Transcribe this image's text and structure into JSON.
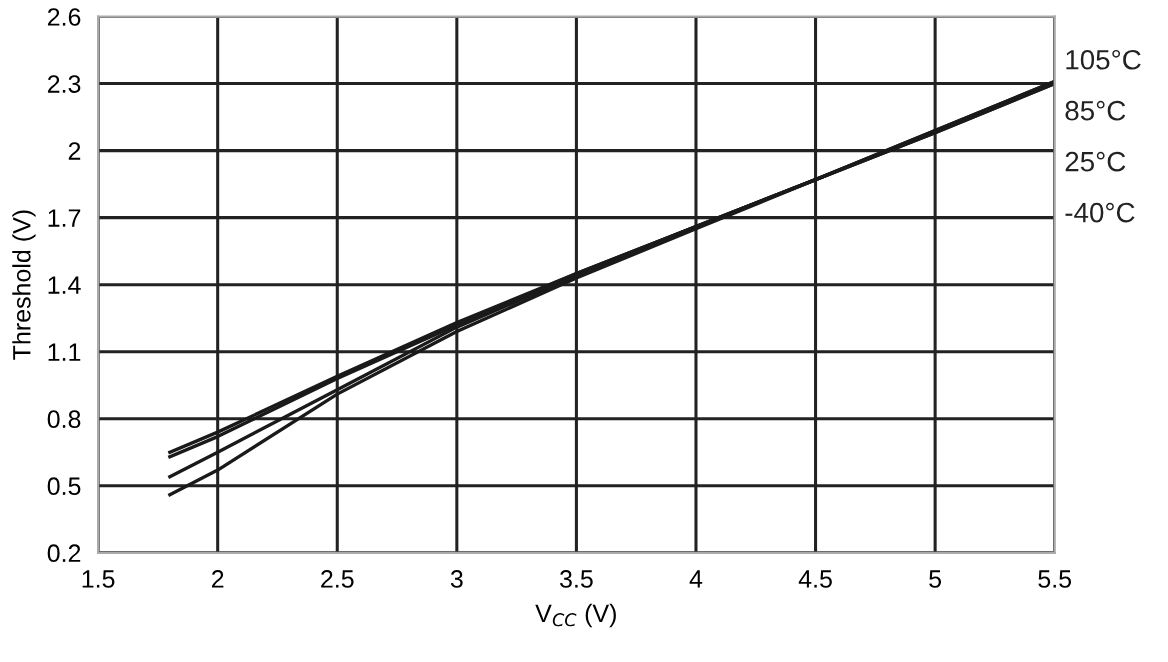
{
  "chart_data": {
    "type": "line",
    "xlabel": "V$_{CC}$ (V)",
    "ylabel": "Threshold (V)",
    "x": [
      1.8,
      2,
      2.5,
      3,
      3.5,
      4,
      4.5,
      5,
      5.5
    ],
    "series": [
      {
        "name": "105°C",
        "color": "#1a1a1a",
        "values": [
          0.65,
          0.74,
          0.99,
          1.23,
          1.45,
          1.66,
          1.87,
          2.09,
          2.31
        ]
      },
      {
        "name": "85°C",
        "color": "#1a1a1a",
        "values": [
          0.63,
          0.72,
          0.98,
          1.22,
          1.45,
          1.66,
          1.87,
          2.09,
          2.31
        ]
      },
      {
        "name": "25°C",
        "color": "#1a1a1a",
        "values": [
          0.54,
          0.65,
          0.93,
          1.21,
          1.44,
          1.66,
          1.87,
          2.08,
          2.3
        ]
      },
      {
        "name": "-40°C",
        "color": "#1a1a1a",
        "values": [
          0.46,
          0.57,
          0.91,
          1.19,
          1.43,
          1.65,
          1.87,
          2.08,
          2.3
        ]
      }
    ],
    "xlim": [
      1.5,
      5.5
    ],
    "xticks": [
      1.5,
      2,
      2.5,
      3,
      3.5,
      4,
      4.5,
      5,
      5.5
    ],
    "ylim": [
      0.2,
      2.6
    ],
    "yticks": [
      0.2,
      0.5,
      0.8,
      1.1,
      1.4,
      1.7,
      2,
      2.3,
      2.6
    ],
    "grid": true,
    "marker": "none",
    "line_style": "solid"
  }
}
